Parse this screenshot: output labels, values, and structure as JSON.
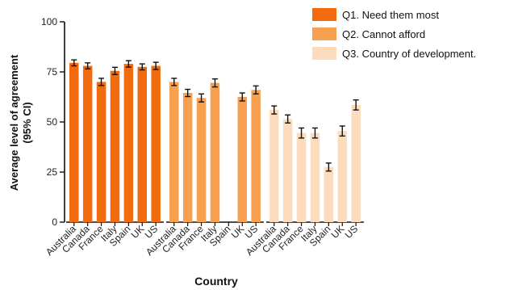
{
  "chart_data": {
    "type": "bar",
    "xlabel": "Country",
    "ylabel": "Average level of agreement",
    "ylabel_line2": "(95% CI)",
    "ylim": [
      0,
      100
    ],
    "yticks": [
      "0",
      "25",
      "50",
      "75",
      "100"
    ],
    "legend_position": "top-right",
    "categories": [
      "Australia",
      "Canada",
      "France",
      "Italy",
      "Spain",
      "UK",
      "US"
    ],
    "series": [
      {
        "name": "Q1. Need them most",
        "color": "#f26b0f",
        "values": [
          79.5,
          78,
          70,
          75.5,
          79,
          77.5,
          78
        ],
        "err": [
          1.5,
          1.5,
          1.8,
          1.8,
          1.6,
          1.5,
          1.8
        ]
      },
      {
        "name": "Q2. Cannot afford",
        "color": "#f7a050",
        "values": [
          70,
          64.5,
          62,
          69.5,
          null,
          62.5,
          66
        ],
        "err": [
          1.8,
          1.8,
          2.0,
          2.0,
          null,
          2.0,
          2.0
        ]
      },
      {
        "name": "Q3. Country of development.",
        "color": "#fddcbd",
        "values": [
          56,
          51.5,
          44.5,
          44.5,
          27.5,
          45.5,
          58.5
        ],
        "err": [
          2.0,
          2.0,
          2.5,
          2.5,
          2.0,
          2.5,
          2.5
        ]
      }
    ]
  }
}
